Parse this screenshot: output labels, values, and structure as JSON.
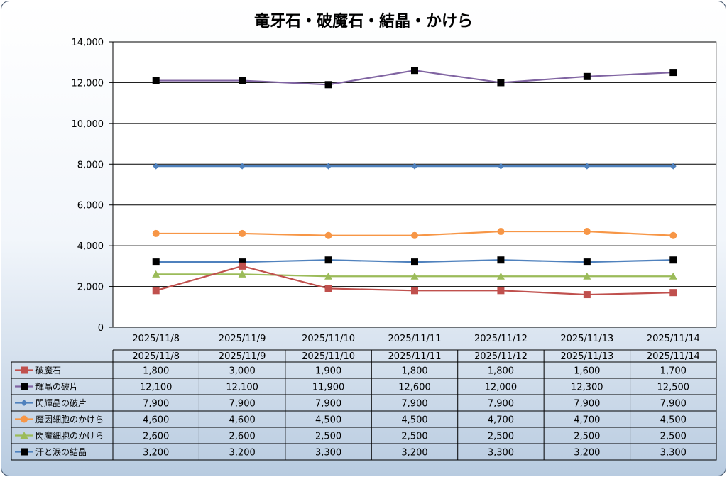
{
  "chart_data": {
    "type": "line",
    "title": "竜牙石・破魔石・結晶・かけら",
    "xlabel": "",
    "ylabel": "",
    "ylim": [
      0,
      14000
    ],
    "y_ticks": [
      "0",
      "2,000",
      "4,000",
      "6,000",
      "8,000",
      "10,000",
      "12,000",
      "14,000"
    ],
    "grid": true,
    "legend": "data-table",
    "categories": [
      "2025/11/8",
      "2025/11/9",
      "2025/11/10",
      "2025/11/11",
      "2025/11/12",
      "2025/11/13",
      "2025/11/14"
    ],
    "series": [
      {
        "name": "破魔石",
        "color": "#c0504d",
        "marker": "square",
        "values": [
          1800,
          3000,
          1900,
          1800,
          1800,
          1600,
          1700
        ],
        "labels": [
          "1,800",
          "3,000",
          "1,900",
          "1,800",
          "1,800",
          "1,600",
          "1,700"
        ]
      },
      {
        "name": "輝晶の破片",
        "color": "#8064a2",
        "marker_color": "#000000",
        "marker": "square",
        "values": [
          12100,
          12100,
          11900,
          12600,
          12000,
          12300,
          12500
        ],
        "labels": [
          "12,100",
          "12,100",
          "11,900",
          "12,600",
          "12,000",
          "12,300",
          "12,500"
        ]
      },
      {
        "name": "閃輝晶の破片",
        "color": "#4f81bd",
        "marker": "diamond",
        "values": [
          7900,
          7900,
          7900,
          7900,
          7900,
          7900,
          7900
        ],
        "labels": [
          "7,900",
          "7,900",
          "7,900",
          "7,900",
          "7,900",
          "7,900",
          "7,900"
        ]
      },
      {
        "name": "魔因細胞のかけら",
        "color": "#f79646",
        "marker": "circle",
        "values": [
          4600,
          4600,
          4500,
          4500,
          4700,
          4700,
          4500
        ],
        "labels": [
          "4,600",
          "4,600",
          "4,500",
          "4,500",
          "4,700",
          "4,700",
          "4,500"
        ]
      },
      {
        "name": "閃魔細胞のかけら",
        "color": "#9bbb59",
        "marker": "triangle",
        "values": [
          2600,
          2600,
          2500,
          2500,
          2500,
          2500,
          2500
        ],
        "labels": [
          "2,600",
          "2,600",
          "2,500",
          "2,500",
          "2,500",
          "2,500",
          "2,500"
        ]
      },
      {
        "name": "汗と涙の結晶",
        "color": "#4f81bd",
        "marker_color": "#000000",
        "marker": "square",
        "values": [
          3200,
          3200,
          3300,
          3200,
          3300,
          3200,
          3300
        ],
        "labels": [
          "3,200",
          "3,200",
          "3,300",
          "3,200",
          "3,300",
          "3,200",
          "3,300"
        ]
      }
    ]
  }
}
